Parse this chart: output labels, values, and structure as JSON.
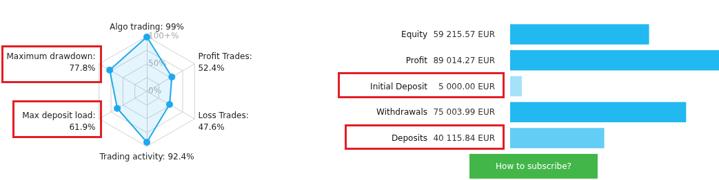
{
  "chart_data": [
    {
      "type": "radar",
      "categories": [
        "Algo trading: 99%",
        "Profit Trades: 52.4%",
        "Loss Trades: 47.6%",
        "Trading activity: 92.4%",
        "Max deposit load: 61.9%",
        "Maximum drawdown: 77.8%"
      ],
      "series": [
        {
          "color": "#1ea9ef",
          "values": [
            99,
            52.4,
            47.6,
            92.4,
            61.9,
            77.8
          ]
        }
      ],
      "ylim": [
        0,
        100
      ],
      "yticks": [
        {
          "value": 0,
          "label": "0%"
        },
        {
          "value": 50,
          "label": "50%"
        },
        {
          "value": 100,
          "label": "100+%"
        }
      ],
      "marker": "circle"
    },
    {
      "type": "bar",
      "orientation": "horizontal",
      "categories": [
        "Equity",
        "Profit",
        "Initial Deposit",
        "Withdrawals",
        "Deposits"
      ],
      "values": [
        59215.57,
        89014.27,
        5000.0,
        75003.99,
        40115.84
      ],
      "colors": [
        "#22b8f0",
        "#22b8f0",
        "#a6e1fa",
        "#22b8f0",
        "#62cdf5"
      ],
      "value_labels": [
        "59 215.57 EUR",
        "89 014.27 EUR",
        "5 000.00 EUR",
        "75 003.99 EUR",
        "40 115.84 EUR"
      ],
      "annotations": [
        "How to subscribe?"
      ]
    }
  ]
}
